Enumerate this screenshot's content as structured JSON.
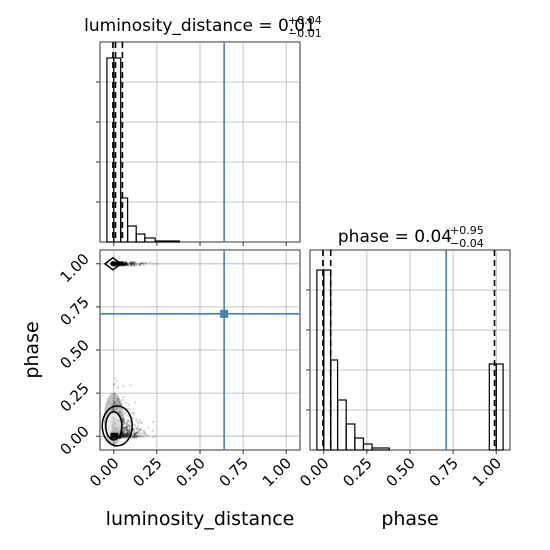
{
  "chart_data": [
    {
      "type": "histogram",
      "panel": "luminosity_distance",
      "title": {
        "main": "luminosity_distance = 0.01",
        "sup": "+0.04",
        "sub": "−0.01"
      },
      "xlim": [
        -0.08,
        1.08
      ],
      "ylim": [
        0,
        1.0
      ],
      "bins": [
        {
          "x0": -0.04,
          "x1": 0.0,
          "h": 0.92
        },
        {
          "x0": 0.0,
          "x1": 0.04,
          "h": 0.92
        },
        {
          "x0": 0.04,
          "x1": 0.08,
          "h": 0.22
        },
        {
          "x0": 0.08,
          "x1": 0.13,
          "h": 0.08
        },
        {
          "x0": 0.13,
          "x1": 0.18,
          "h": 0.04
        },
        {
          "x0": 0.18,
          "x1": 0.24,
          "h": 0.02
        },
        {
          "x0": 0.24,
          "x1": 0.38,
          "h": 0.005
        }
      ],
      "quantiles": [
        -0.005,
        0.01,
        0.05
      ],
      "truth": 0.64,
      "grid": true
    },
    {
      "type": "scatter",
      "panel": "2d",
      "xlabel": "luminosity_distance",
      "ylabel": "phase",
      "xlim": [
        -0.08,
        1.08
      ],
      "ylim": [
        -0.08,
        1.08
      ],
      "xticks": [
        "0.00",
        "0.25",
        "0.50",
        "0.75",
        "1.00"
      ],
      "yticks": [
        "0.00",
        "0.25",
        "0.50",
        "0.75",
        "1.00"
      ],
      "truth": {
        "x": 0.64,
        "y": 0.71
      },
      "clusters": [
        {
          "cx": 0.0,
          "cy": 1.0,
          "spread_x": 0.5,
          "spread_y": 0.005
        },
        {
          "cx": 0.0,
          "cy": 0.0,
          "spread_x": 0.5,
          "spread_y": 0.4
        }
      ],
      "grid": true
    },
    {
      "type": "histogram",
      "panel": "phase",
      "title": {
        "main": "phase = 0.04",
        "sup": "+0.95",
        "sub": "−0.04"
      },
      "xlabel": "phase",
      "xlim": [
        -0.08,
        1.08
      ],
      "ylim": [
        0,
        1.0
      ],
      "xticks": [
        "0.00",
        "0.25",
        "0.50",
        "0.75",
        "1.00"
      ],
      "bins": [
        {
          "x0": -0.04,
          "x1": 0.0,
          "h": 0.9
        },
        {
          "x0": 0.0,
          "x1": 0.04,
          "h": 0.9
        },
        {
          "x0": 0.04,
          "x1": 0.08,
          "h": 0.45
        },
        {
          "x0": 0.08,
          "x1": 0.13,
          "h": 0.25
        },
        {
          "x0": 0.13,
          "x1": 0.18,
          "h": 0.13
        },
        {
          "x0": 0.18,
          "x1": 0.23,
          "h": 0.06
        },
        {
          "x0": 0.23,
          "x1": 0.28,
          "h": 0.03
        },
        {
          "x0": 0.28,
          "x1": 0.38,
          "h": 0.01
        },
        {
          "x0": 0.96,
          "x1": 1.0,
          "h": 0.43
        },
        {
          "x0": 1.0,
          "x1": 1.04,
          "h": 0.43
        }
      ],
      "quantiles": [
        -0.005,
        0.04,
        0.99
      ],
      "truth": 0.71,
      "grid": true
    }
  ],
  "colors": {
    "truth": "#4682b4",
    "hist": "#000000",
    "grid": "#b0b0b0"
  }
}
